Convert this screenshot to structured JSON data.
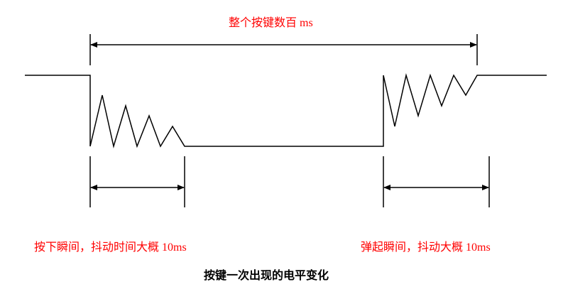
{
  "title": "整个按键数百 ms",
  "press_label": "按下瞬间，抖动时间大概 10ms",
  "release_label": "弹起瞬间，抖动大概 10ms",
  "caption": "按键一次出现的电平变化",
  "colors": {
    "annotation": "#ff0000",
    "line": "#000000"
  }
}
